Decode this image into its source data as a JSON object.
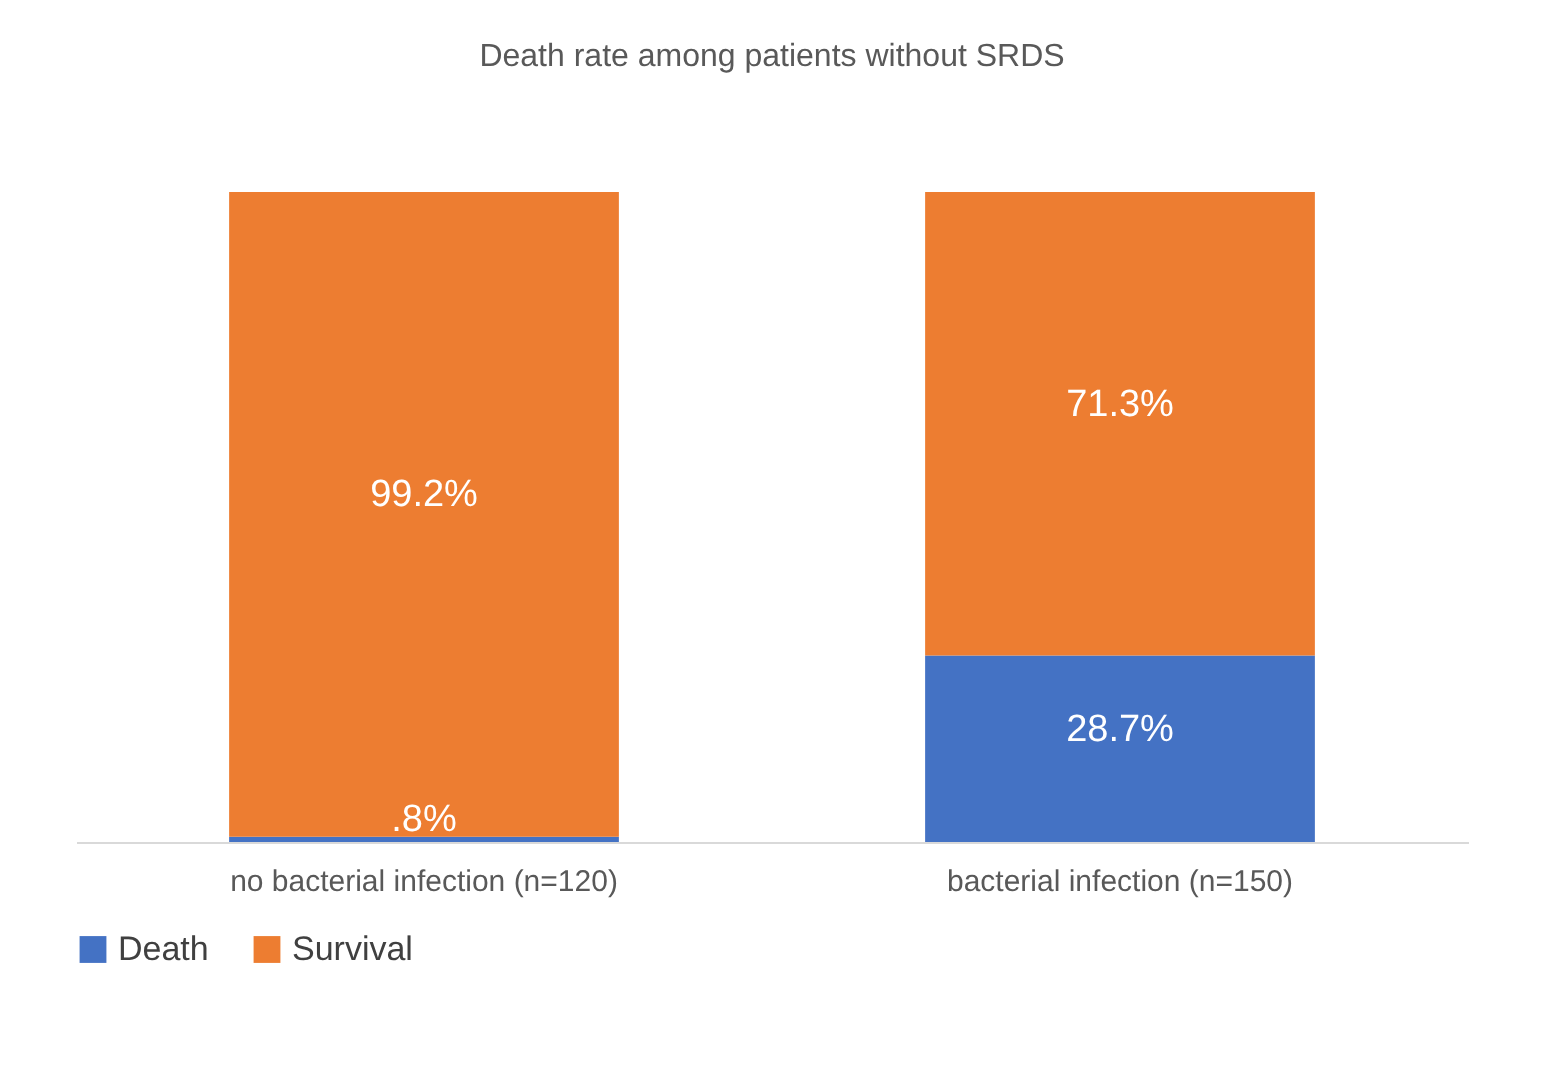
{
  "chart_data": {
    "type": "bar",
    "title": "Death rate among patients without SRDS",
    "categories": [
      "no bacterial infection (n=120)",
      "bacterial infection (n=150)"
    ],
    "stacked": true,
    "series": [
      {
        "name": "Death",
        "color": "#4472c4",
        "values": [
          0.8,
          28.7
        ],
        "value_labels": [
          ".8%",
          "28.7%"
        ]
      },
      {
        "name": "Survival",
        "color": "#ed7d31",
        "values": [
          99.2,
          71.3
        ],
        "value_labels": [
          "99.2%",
          "71.3%"
        ]
      }
    ],
    "legend": "bottom"
  }
}
